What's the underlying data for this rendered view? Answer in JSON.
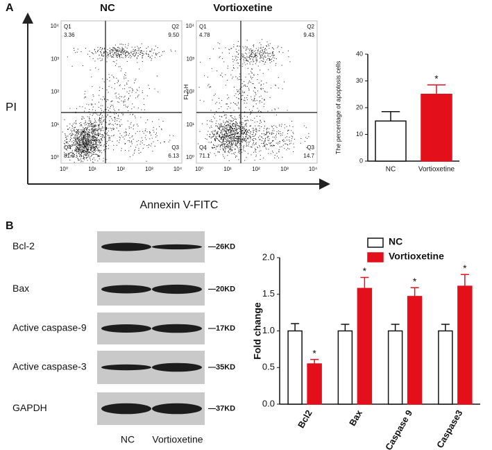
{
  "panel_labels": [
    "A",
    "B"
  ],
  "flow": {
    "y_label": "PI",
    "x_label": "Annexin V-FITC",
    "ticks": [
      "10⁰",
      "10¹",
      "10²",
      "10³",
      "10⁴"
    ],
    "plots": [
      {
        "title": "NC",
        "quadrants": [
          {
            "name": "Q1",
            "value": "3.36"
          },
          {
            "name": "Q2",
            "value": "9.50"
          },
          {
            "name": "Q4",
            "value": "81.0"
          },
          {
            "name": "Q3",
            "value": "6.13"
          }
        ]
      },
      {
        "title": "Vortioxetine",
        "axis_label": "FL2-H",
        "quadrants": [
          {
            "name": "Q1",
            "value": "4.78"
          },
          {
            "name": "Q2",
            "value": "9.43"
          },
          {
            "name": "Q4",
            "value": "71.1"
          },
          {
            "name": "Q3",
            "value": "14.7"
          }
        ]
      }
    ]
  },
  "blot": {
    "rows": [
      {
        "label": "Bcl-2",
        "size": "—26KD"
      },
      {
        "label": "Bax",
        "size": "—20KD"
      },
      {
        "label": "Active caspase-9",
        "size": "—17KD"
      },
      {
        "label": "Active caspase-3",
        "size": "—35KD"
      },
      {
        "label": "GAPDH",
        "size": "—37KD"
      }
    ],
    "lanes": [
      "NC",
      "Vortioxetine"
    ]
  },
  "chart_data": [
    {
      "type": "bar",
      "y_label": "The percentage of apoptosis cells",
      "categories": [
        "NC",
        "Vortioxetine"
      ],
      "series": [
        {
          "colors": [
            "#ffffff",
            "#e3101b"
          ],
          "values": [
            15,
            25
          ],
          "errors": [
            3.5,
            3.5
          ]
        }
      ],
      "significance": [
        null,
        "*"
      ],
      "ylim": [
        0,
        40
      ],
      "yticks": [
        0,
        10,
        20,
        30,
        40
      ]
    },
    {
      "type": "bar",
      "y_label": "Fold change",
      "categories": [
        "Bcl2",
        "Bax",
        "Caspase 9",
        "Caspase3"
      ],
      "series": [
        {
          "name": "NC",
          "color": "#ffffff",
          "values": [
            1.0,
            1.0,
            1.0,
            1.0
          ],
          "errors": [
            0.1,
            0.09,
            0.09,
            0.09
          ]
        },
        {
          "name": "Vortioxetine",
          "color": "#e3101b",
          "values": [
            0.55,
            1.58,
            1.47,
            1.61
          ],
          "errors": [
            0.06,
            0.15,
            0.12,
            0.16
          ]
        }
      ],
      "significance": [
        "*",
        "*",
        "*",
        "*"
      ],
      "legend": "top-right",
      "ylim": [
        0,
        2
      ],
      "yticks": [
        {
          "value": 0,
          "label": "0.0"
        },
        0.5,
        {
          "value": 1,
          "label": "1.0"
        },
        1.5,
        {
          "value": 2,
          "label": "2.0"
        }
      ]
    }
  ]
}
